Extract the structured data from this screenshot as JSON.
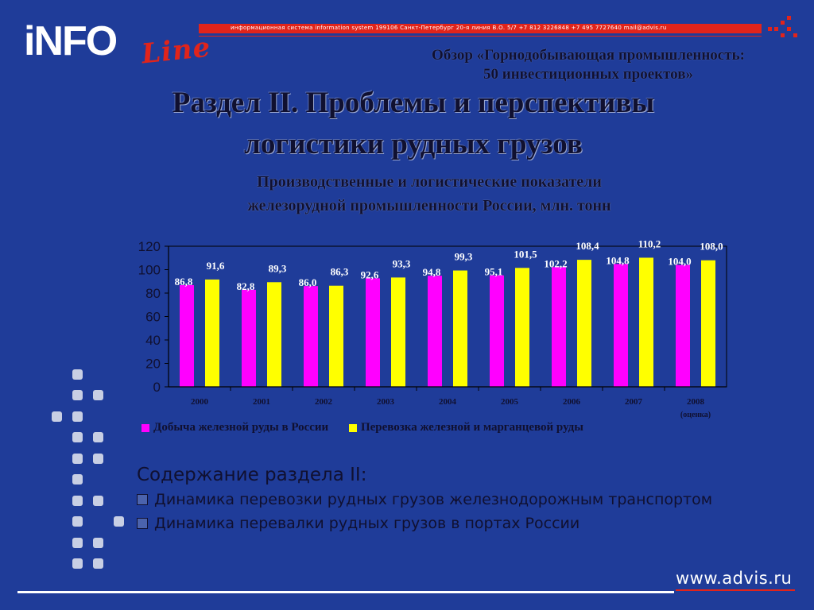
{
  "logo": {
    "part1": "iNFO",
    "part2": "Line"
  },
  "topbar": {
    "text": "информационная система   information system     199106   Санкт-Петербург  20-я линия В.О.  5/7      +7 812 3226848  +7 495 7727640       mail@advis.ru"
  },
  "overview": {
    "line1": "Обзор «Горнодобывающая промышленность:",
    "line2": "50 инвестиционных проектов»"
  },
  "title": {
    "line1": "Раздел II. Проблемы и перспективы",
    "line2": "логистики рудных грузов"
  },
  "subtitle": {
    "line1": "Производственные и логистические показатели",
    "line2": "железорудной промышленности России, млн. тонн"
  },
  "chart_data": {
    "type": "bar",
    "title": "Производственные и логистические показатели железорудной промышленности России, млн. тонн",
    "categories": [
      "2000",
      "2001",
      "2002",
      "2003",
      "2004",
      "2005",
      "2006",
      "2007",
      "2008"
    ],
    "category_notes": [
      "",
      "",
      "",
      "",
      "",
      "",
      "",
      "",
      "(оценка)"
    ],
    "series": [
      {
        "name": "Добыча железной руды в России",
        "color": "#ff00ff",
        "values": [
          86.8,
          82.8,
          86.0,
          92.6,
          94.8,
          95.1,
          102.2,
          104.8,
          104.0
        ],
        "labels": [
          "86,8",
          "82,8",
          "86,0",
          "92,6",
          "94,8",
          "95,1",
          "102,2",
          "104,8",
          "104,0"
        ]
      },
      {
        "name": "Перевозка железной и марганцевой руды",
        "color": "#ffff00",
        "values": [
          91.6,
          89.3,
          86.3,
          93.3,
          99.3,
          101.5,
          108.4,
          110.2,
          108.0
        ],
        "labels": [
          "91,6",
          "89,3",
          "86,3",
          "93,3",
          "99,3",
          "101,5",
          "108,4",
          "110,2",
          "108,0"
        ]
      }
    ],
    "yticks": [
      "0",
      "20",
      "40",
      "60",
      "80",
      "100",
      "120"
    ],
    "ylim": [
      0,
      120
    ],
    "grid": false,
    "legend": "bottom",
    "plot_bg": "#1f3c99"
  },
  "contents": {
    "heading": "Содержание раздела II:",
    "items": [
      "Динамика перевозки рудных грузов железнодорожным транспортом",
      "Динамика перевалки рудных грузов в портах России"
    ]
  },
  "footer": {
    "url": "www.advis.ru"
  },
  "colors": {
    "background": "#1f3c99",
    "brand_red": "#e1241b",
    "text_dark": "#101030"
  }
}
